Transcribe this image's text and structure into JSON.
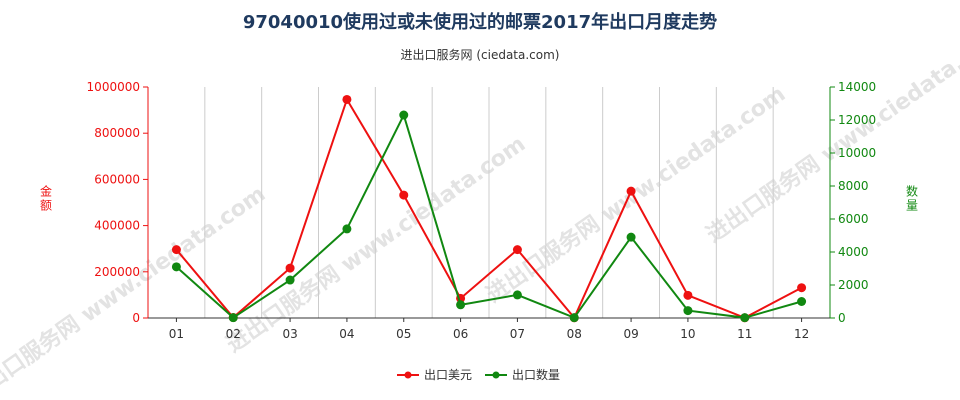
{
  "title": "97040010使用过或未使用过的邮票2017年出口月度走势",
  "subtitle": "进出口服务网 (ciedata.com)",
  "watermark_text": "进出口服务网 www.ciedata.com",
  "colors": {
    "usd": "#ee1111",
    "qty": "#118811",
    "grid": "#cccccc",
    "axis": "#333333"
  },
  "chart_data": {
    "type": "line",
    "categories": [
      "01",
      "02",
      "03",
      "04",
      "05",
      "06",
      "07",
      "08",
      "09",
      "10",
      "11",
      "12"
    ],
    "series": [
      {
        "name": "出口美元",
        "axis": "left",
        "values": [
          296000,
          2000,
          216000,
          946000,
          532000,
          85000,
          296000,
          1000,
          549000,
          98000,
          1000,
          131000
        ]
      },
      {
        "name": "出口数量",
        "axis": "right",
        "values": [
          3100,
          20,
          2300,
          5400,
          12300,
          800,
          1400,
          20,
          4900,
          450,
          20,
          1000
        ]
      }
    ],
    "ylabel_left": "金额",
    "ylabel_right": "数量",
    "ylim_left": [
      0,
      1000000
    ],
    "ylim_right": [
      0,
      14000
    ],
    "yticks_left": [
      "0",
      "200000",
      "400000",
      "600000",
      "800000",
      "1000000"
    ],
    "yticks_right": [
      "0",
      "2000",
      "4000",
      "6000",
      "8000",
      "10000",
      "12000",
      "14000"
    ],
    "grid": "vertical",
    "legend_position": "bottom-center"
  }
}
